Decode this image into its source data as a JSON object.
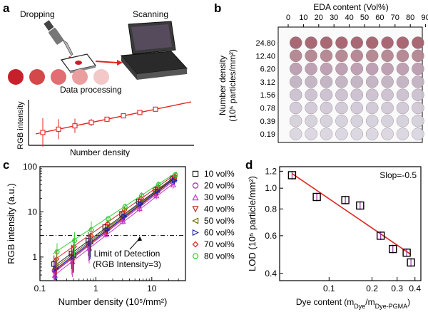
{
  "panels": {
    "a": {
      "label": "a",
      "dropping": "Dropping",
      "scanning": "Scanning",
      "data_processing": "Data processing",
      "ylabel": "RGB intensity",
      "xlabel": "Number density",
      "drop_colors": [
        "#c8202a",
        "#d34848",
        "#e06e72",
        "#eb9ea0",
        "#f3c8c8"
      ],
      "accent": "#e3241e"
    },
    "b": {
      "label": "b",
      "title": "EDA content (Vol%)",
      "x_ticks": [
        "0",
        "10",
        "20",
        "30",
        "40",
        "50",
        "60",
        "70",
        "80",
        "90"
      ],
      "y_ticks": [
        "24.80",
        "12.40",
        "6.20",
        "3.12",
        "1.56",
        "0.78",
        "0.39",
        "0.19"
      ],
      "ylabel_line1": "Number density",
      "ylabel_line2": "(10⁵ particles/mm²)",
      "row_colors": [
        "#a4626e",
        "#b38691",
        "#bb9eb0",
        "#c3b3c3",
        "#cbc1cf",
        "#d1cad7",
        "#d6d1dc",
        "#dbd7e1"
      ]
    },
    "c": {
      "label": "c",
      "annotation_line1": "Limit of Detection",
      "annotation_line2": "(RGB Intensity=3)"
    },
    "d": {
      "label": "d",
      "annotation": "Slop=-0.5"
    }
  },
  "chart_data": [
    {
      "id": "c",
      "type": "scatter",
      "xlabel": "Number density (10⁵/mm²)",
      "ylabel": "RGB intensity (a.u.)",
      "xscale": "log",
      "yscale": "log",
      "xlim": [
        0.1,
        40
      ],
      "ylim": [
        0.3,
        100
      ],
      "x_ticks": [
        0.1,
        1,
        10
      ],
      "x_tick_labels": [
        "0.1",
        "1",
        "10"
      ],
      "y_ticks": [
        1,
        10,
        100
      ],
      "y_tick_labels": [
        "1",
        "10",
        "100"
      ],
      "threshold": 3,
      "x": [
        0.19,
        0.39,
        0.78,
        1.56,
        3.12,
        6.2,
        12.4,
        24.8
      ],
      "series": [
        {
          "name": "10 vol%",
          "marker": "square",
          "color": "#222222",
          "values": [
            0.7,
            1.2,
            2.3,
            4.6,
            9.0,
            17,
            31,
            55
          ]
        },
        {
          "name": "20 vol%",
          "marker": "circle",
          "color": "#9b2fa8",
          "values": [
            0.5,
            0.9,
            1.8,
            3.6,
            7.0,
            14,
            26,
            46
          ]
        },
        {
          "name": "30 vol%",
          "marker": "triangle-up",
          "color": "#c838c8",
          "values": [
            0.4,
            0.8,
            1.6,
            3.2,
            6.3,
            12,
            23,
            40
          ]
        },
        {
          "name": "40 vol%",
          "marker": "triangle-down",
          "color": "#cc2a2a",
          "values": [
            0.5,
            1.0,
            1.9,
            3.8,
            7.5,
            15,
            28,
            48
          ]
        },
        {
          "name": "50 vol%",
          "marker": "triangle-left",
          "color": "#6b6b00",
          "values": [
            0.6,
            1.1,
            2.2,
            4.3,
            8.5,
            16,
            30,
            52
          ]
        },
        {
          "name": "60 vol%",
          "marker": "triangle-right",
          "color": "#1f1fb4",
          "values": [
            0.55,
            1.0,
            2.0,
            4.0,
            8.0,
            15,
            29,
            50
          ]
        },
        {
          "name": "70 vol%",
          "marker": "diamond",
          "color": "#e02424",
          "values": [
            0.9,
            1.7,
            3.0,
            5.5,
            11,
            20,
            36,
            60
          ]
        },
        {
          "name": "80 vol%",
          "marker": "hexagon",
          "color": "#33cc33",
          "values": [
            1.3,
            2.3,
            4.0,
            7.0,
            13,
            23,
            40,
            66
          ]
        }
      ]
    },
    {
      "id": "d",
      "type": "scatter",
      "xlabel": "Dye content (m",
      "xlabel_sub1": "Dye",
      "xlabel_mid": "/m",
      "xlabel_sub2": "Dye-PGMA",
      "xlabel_end": ")",
      "ylabel": "LOD (10⁵ particle/mm²)",
      "xscale": "log",
      "yscale": "log",
      "xlim": [
        0.045,
        0.44
      ],
      "ylim": [
        0.37,
        1.26
      ],
      "x_ticks": [
        0.1,
        0.2,
        0.3,
        0.4
      ],
      "x_tick_labels": [
        "0.1",
        "0.2",
        "0.3",
        "0.4"
      ],
      "y_ticks": [
        0.4,
        0.6,
        0.8,
        1.0,
        1.2
      ],
      "y_tick_labels": [
        "0.4",
        "0.6",
        "0.8",
        "1.0",
        "1.2"
      ],
      "x": [
        0.055,
        0.082,
        0.13,
        0.165,
        0.23,
        0.28,
        0.35,
        0.375
      ],
      "values": [
        1.15,
        0.91,
        0.88,
        0.83,
        0.6,
        0.52,
        0.5,
        0.45
      ],
      "fit": {
        "x": [
          0.055,
          0.375
        ],
        "y": [
          1.17,
          0.49
        ]
      }
    }
  ]
}
